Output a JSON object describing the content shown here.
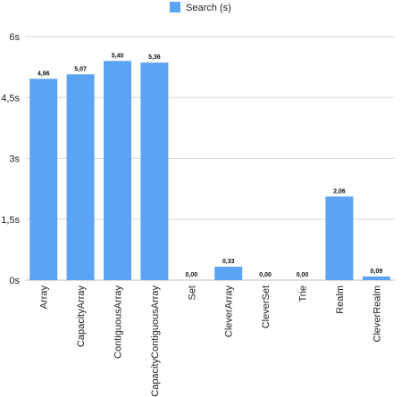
{
  "chart_data": {
    "type": "bar",
    "categories": [
      "Array",
      "CapacityArray",
      "ContiguousArray",
      "CapacityContiguousArray",
      "Set",
      "CleverArray",
      "CleverSet",
      "Trie",
      "Realm",
      "CleverRealm"
    ],
    "series": [
      {
        "name": "Search (s)",
        "color": "#5ba3f5",
        "values": [
          4.96,
          5.07,
          5.4,
          5.36,
          0.0,
          0.33,
          0.0,
          0.0,
          2.06,
          0.09
        ],
        "data_labels": [
          "4,96",
          "5,07",
          "5,40",
          "5,36",
          "0,00",
          "0,33",
          "0,00",
          "0,00",
          "2,06",
          "0,09"
        ]
      }
    ],
    "y_ticks": [
      {
        "value": 0,
        "label": "0s"
      },
      {
        "value": 1.5,
        "label": "1,5s"
      },
      {
        "value": 3,
        "label": "3s"
      },
      {
        "value": 4.5,
        "label": "4,5s"
      },
      {
        "value": 6,
        "label": "6s"
      }
    ],
    "ylim": [
      0,
      6
    ],
    "title": "",
    "xlabel": "",
    "ylabel": "",
    "grid": true,
    "legend_position": "top-center",
    "x_label_rotation": "vertical"
  }
}
